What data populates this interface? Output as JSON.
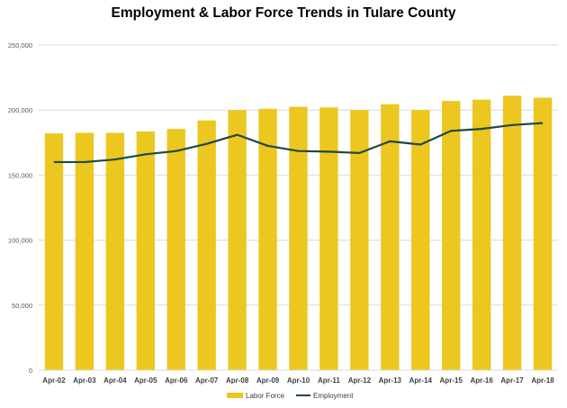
{
  "chart_data": {
    "type": "bar",
    "title": "Employment & Labor Force Trends in Tulare County",
    "categories": [
      "Apr-02",
      "Apr-03",
      "Apr-04",
      "Apr-05",
      "Apr-06",
      "Apr-07",
      "Apr-08",
      "Apr-09",
      "Apr-10",
      "Apr-11",
      "Apr-12",
      "Apr-13",
      "Apr-14",
      "Apr-15",
      "Apr-16",
      "Apr-17",
      "Apr-18"
    ],
    "series": [
      {
        "name": "Labor Force",
        "kind": "bar",
        "color": "#ECC71F",
        "values": [
          182000,
          182500,
          182500,
          183500,
          185500,
          192000,
          200000,
          201000,
          202500,
          202000,
          200000,
          204500,
          200000,
          207000,
          208000,
          211000,
          209500
        ]
      },
      {
        "name": "Employment",
        "kind": "line",
        "color": "#1C4A3E",
        "values": [
          160000,
          160000,
          162000,
          166000,
          168500,
          174000,
          181000,
          172500,
          168500,
          168000,
          167000,
          176000,
          173500,
          184000,
          185500,
          188500,
          190000
        ]
      }
    ],
    "ylim": [
      0,
      250000
    ],
    "yticks": [
      "0",
      "50,000",
      "100,000",
      "150,000",
      "200,000",
      "250,000"
    ],
    "grid": true,
    "legend": "bottom"
  }
}
